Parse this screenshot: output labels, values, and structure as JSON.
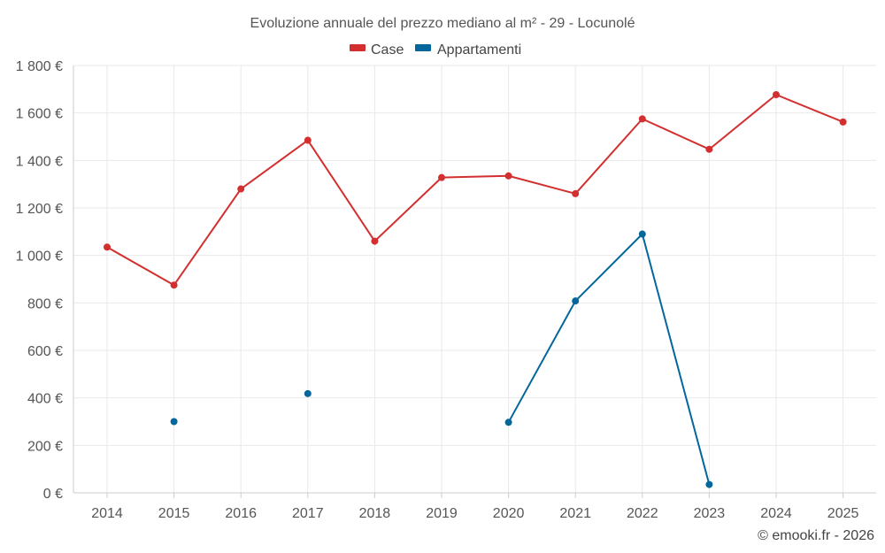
{
  "chart_data": {
    "type": "line",
    "title": "Evoluzione annuale del prezzo mediano al m² - 29 - Locunolé",
    "categories": [
      "2014",
      "2015",
      "2016",
      "2017",
      "2018",
      "2019",
      "2020",
      "2021",
      "2022",
      "2023",
      "2024",
      "2025"
    ],
    "series": [
      {
        "name": "Case",
        "color": "#d32f2f",
        "values": [
          1035,
          875,
          1280,
          1485,
          1060,
          1328,
          1335,
          1260,
          1575,
          1447,
          1677,
          1562
        ]
      },
      {
        "name": "Appartamenti",
        "color": "#04679c",
        "values": [
          null,
          300,
          null,
          418,
          null,
          null,
          297,
          808,
          1090,
          35,
          null,
          null
        ]
      }
    ],
    "y_ticks": [
      "0 €",
      "200 €",
      "400 €",
      "600 €",
      "800 €",
      "1 000 €",
      "1 200 €",
      "1 400 €",
      "1 600 €",
      "1 800 €"
    ],
    "ylim": [
      0,
      1800
    ],
    "xlabel": "",
    "ylabel": "",
    "legend_position": "top-center",
    "grid": true
  },
  "credit": "© emooki.fr - 2026"
}
